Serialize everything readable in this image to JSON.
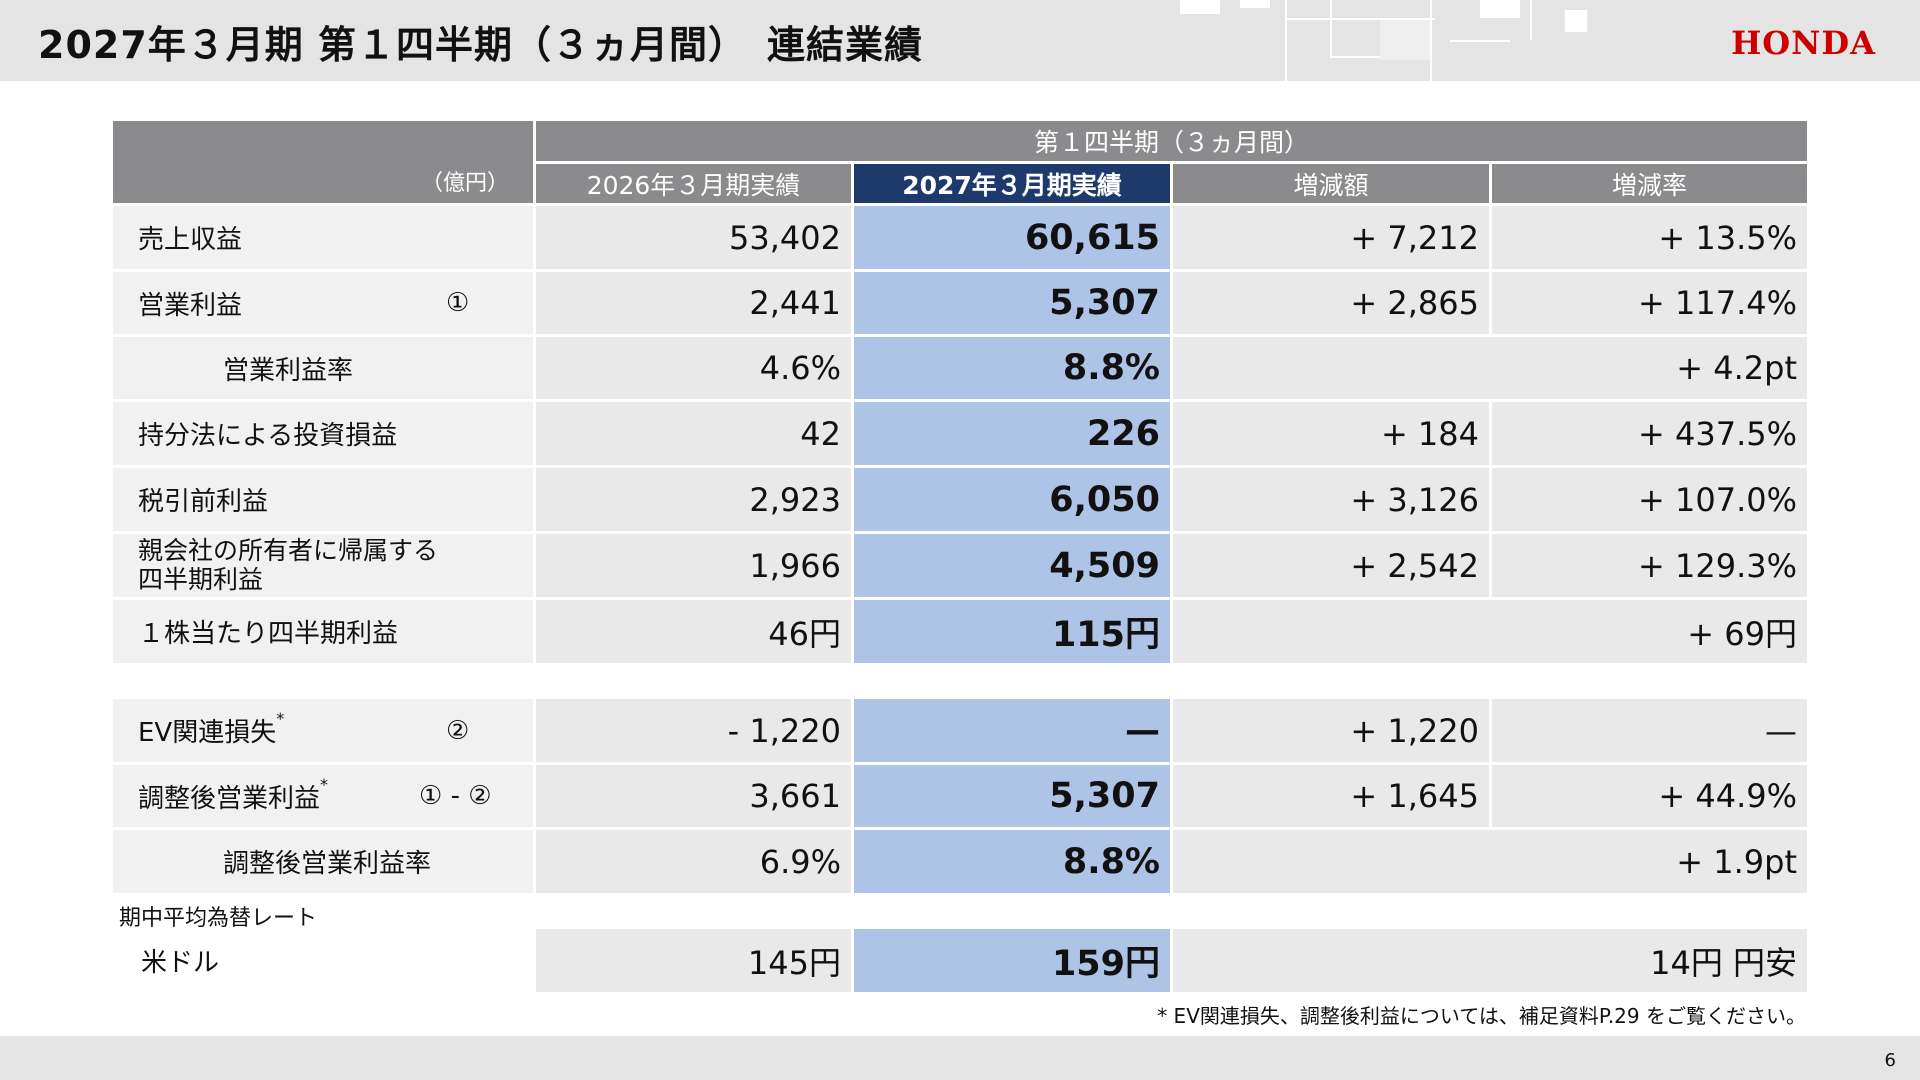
{
  "header": {
    "title": "2027年３月期 第１四半期（３ヵ月間）　連結業績",
    "logo": "HONDA"
  },
  "table": {
    "period_header": "第１四半期（３ヵ月間）",
    "unit": "（億円）",
    "columns": [
      "2026年３月期実績",
      "2027年３月期実績",
      "増減額",
      "増減率"
    ],
    "rows": [
      {
        "label": "売上収益",
        "marker": "",
        "prev": "53,402",
        "curr": "60,615",
        "diff": "+ 7,212",
        "rate": "+ 13.5%"
      },
      {
        "label": "営業利益",
        "marker": "①",
        "prev": "2,441",
        "curr": "5,307",
        "diff": "+ 2,865",
        "rate": "+ 117.4%"
      },
      {
        "label": "営業利益率",
        "marker": "",
        "prev": "4.6%",
        "curr": "8.8%",
        "change": "+ 4.2pt"
      },
      {
        "label": "持分法による投資損益",
        "marker": "",
        "prev": "42",
        "curr": "226",
        "diff": "+ 184",
        "rate": "+ 437.5%"
      },
      {
        "label": "税引前利益",
        "marker": "",
        "prev": "2,923",
        "curr": "6,050",
        "diff": "+ 3,126",
        "rate": "+ 107.0%"
      },
      {
        "label_line1": "親会社の所有者に帰属する",
        "label_line2": "四半期利益",
        "marker": "",
        "prev": "1,966",
        "curr": "4,509",
        "diff": "+ 2,542",
        "rate": "+ 129.3%"
      },
      {
        "label": "１株当たり四半期利益",
        "marker": "",
        "prev": "46円",
        "curr": "115円",
        "change": "+ 69円"
      }
    ],
    "rows2": [
      {
        "label": "EV関連損失",
        "sup": "*",
        "marker": "②",
        "prev": "- 1,220",
        "curr": "—",
        "diff": "+ 1,220",
        "rate": "—"
      },
      {
        "label": "調整後営業利益",
        "sup": "*",
        "marker": "① - ②",
        "prev": "3,661",
        "curr": "5,307",
        "diff": "+ 1,645",
        "rate": "+ 44.9%"
      },
      {
        "label": "調整後営業利益率",
        "marker": "",
        "prev": "6.9%",
        "curr": "8.8%",
        "change": "+ 1.9pt"
      }
    ],
    "fx": {
      "section_label": "期中平均為替レート",
      "label": "米ドル",
      "prev": "145円",
      "curr": "159円",
      "change": "14円 円安"
    }
  },
  "footnote": "* EV関連損失、調整後利益については、補足資料P.29 をご覧ください。",
  "page_number": "6",
  "colors": {
    "logo_red": "#cc0000",
    "header_gray": "#8b8b8d",
    "highlight_header": "#1e3a6c",
    "highlight_cell": "#aec4e6"
  }
}
